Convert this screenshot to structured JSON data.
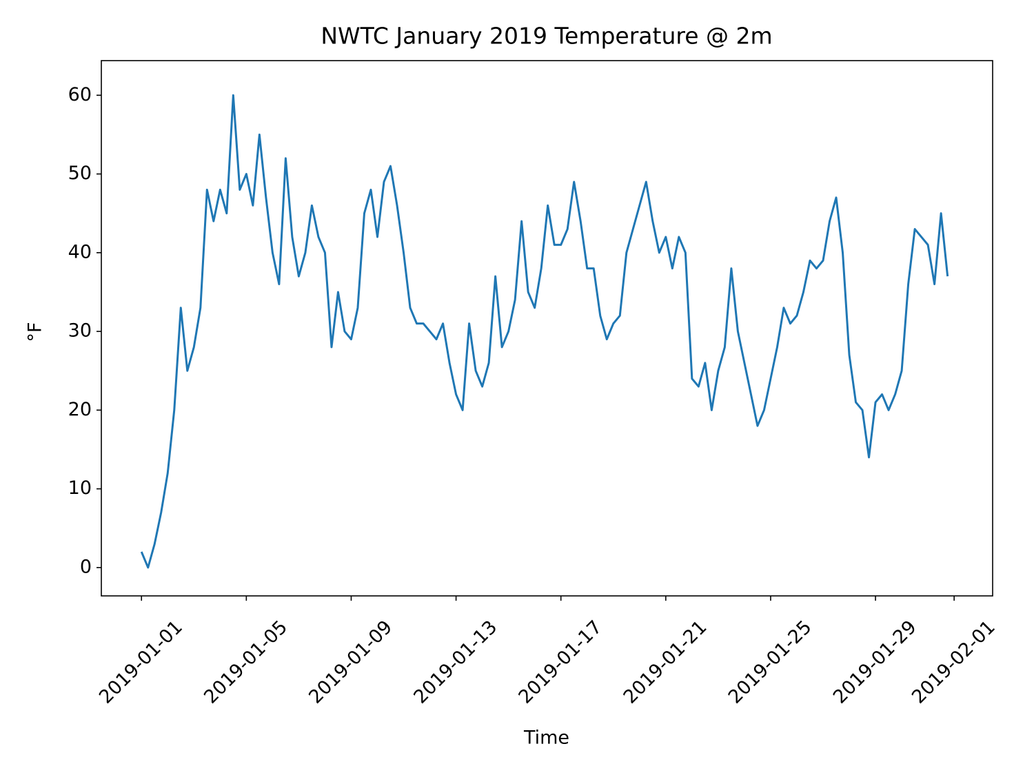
{
  "chart_data": {
    "type": "line",
    "title": "NWTC January 2019 Temperature @ 2m",
    "x_label": "Time",
    "y_label": "°F",
    "color": "#1f77b4",
    "xlim": [
      "2018-12-30T11:15",
      "2019-02-02T11:15"
    ],
    "xticks": [
      "2019-01-01",
      "2019-01-05",
      "2019-01-09",
      "2019-01-13",
      "2019-01-17",
      "2019-01-21",
      "2019-01-25",
      "2019-01-29",
      "2019-02-01"
    ],
    "ylim": [
      -3.6,
      64.4
    ],
    "yticks": [
      0,
      10,
      20,
      30,
      40,
      50,
      60
    ],
    "x": [
      "2019-01-01T00:00",
      "2019-01-01T06:00",
      "2019-01-01T12:00",
      "2019-01-01T18:00",
      "2019-01-02T00:00",
      "2019-01-02T06:00",
      "2019-01-02T12:00",
      "2019-01-02T18:00",
      "2019-01-03T00:00",
      "2019-01-03T06:00",
      "2019-01-03T12:00",
      "2019-01-03T18:00",
      "2019-01-04T00:00",
      "2019-01-04T06:00",
      "2019-01-04T12:00",
      "2019-01-04T18:00",
      "2019-01-05T00:00",
      "2019-01-05T06:00",
      "2019-01-05T12:00",
      "2019-01-05T18:00",
      "2019-01-06T00:00",
      "2019-01-06T06:00",
      "2019-01-06T12:00",
      "2019-01-06T18:00",
      "2019-01-07T00:00",
      "2019-01-07T06:00",
      "2019-01-07T12:00",
      "2019-01-07T18:00",
      "2019-01-08T00:00",
      "2019-01-08T06:00",
      "2019-01-08T12:00",
      "2019-01-08T18:00",
      "2019-01-09T00:00",
      "2019-01-09T06:00",
      "2019-01-09T12:00",
      "2019-01-09T18:00",
      "2019-01-10T00:00",
      "2019-01-10T06:00",
      "2019-01-10T12:00",
      "2019-01-10T18:00",
      "2019-01-11T00:00",
      "2019-01-11T06:00",
      "2019-01-11T12:00",
      "2019-01-11T18:00",
      "2019-01-12T00:00",
      "2019-01-12T06:00",
      "2019-01-12T12:00",
      "2019-01-12T18:00",
      "2019-01-13T00:00",
      "2019-01-13T06:00",
      "2019-01-13T12:00",
      "2019-01-13T18:00",
      "2019-01-14T00:00",
      "2019-01-14T06:00",
      "2019-01-14T12:00",
      "2019-01-14T18:00",
      "2019-01-15T00:00",
      "2019-01-15T06:00",
      "2019-01-15T12:00",
      "2019-01-15T18:00",
      "2019-01-16T00:00",
      "2019-01-16T06:00",
      "2019-01-16T12:00",
      "2019-01-16T18:00",
      "2019-01-17T00:00",
      "2019-01-17T06:00",
      "2019-01-17T12:00",
      "2019-01-17T18:00",
      "2019-01-18T00:00",
      "2019-01-18T06:00",
      "2019-01-18T12:00",
      "2019-01-18T18:00",
      "2019-01-19T00:00",
      "2019-01-19T06:00",
      "2019-01-19T12:00",
      "2019-01-19T18:00",
      "2019-01-20T00:00",
      "2019-01-20T06:00",
      "2019-01-20T12:00",
      "2019-01-20T18:00",
      "2019-01-21T00:00",
      "2019-01-21T06:00",
      "2019-01-21T12:00",
      "2019-01-21T18:00",
      "2019-01-22T00:00",
      "2019-01-22T06:00",
      "2019-01-22T12:00",
      "2019-01-22T18:00",
      "2019-01-23T00:00",
      "2019-01-23T06:00",
      "2019-01-23T12:00",
      "2019-01-23T18:00",
      "2019-01-24T00:00",
      "2019-01-24T06:00",
      "2019-01-24T12:00",
      "2019-01-24T18:00",
      "2019-01-25T00:00",
      "2019-01-25T06:00",
      "2019-01-25T12:00",
      "2019-01-25T18:00",
      "2019-01-26T00:00",
      "2019-01-26T06:00",
      "2019-01-26T12:00",
      "2019-01-26T18:00",
      "2019-01-27T00:00",
      "2019-01-27T06:00",
      "2019-01-27T12:00",
      "2019-01-27T18:00",
      "2019-01-28T00:00",
      "2019-01-28T06:00",
      "2019-01-28T12:00",
      "2019-01-28T18:00",
      "2019-01-29T00:00",
      "2019-01-29T06:00",
      "2019-01-29T12:00",
      "2019-01-29T18:00",
      "2019-01-30T00:00",
      "2019-01-30T06:00",
      "2019-01-30T12:00",
      "2019-01-30T18:00",
      "2019-01-31T00:00",
      "2019-01-31T06:00",
      "2019-01-31T12:00",
      "2019-01-31T18:00"
    ],
    "values": [
      2,
      0,
      3,
      7,
      12,
      20,
      33,
      25,
      28,
      33,
      48,
      44,
      48,
      45,
      60,
      48,
      50,
      46,
      55,
      47,
      40,
      36,
      52,
      42,
      37,
      40,
      46,
      42,
      40,
      28,
      35,
      30,
      29,
      33,
      45,
      48,
      42,
      49,
      51,
      46,
      40,
      33,
      31,
      31,
      30,
      29,
      31,
      26,
      22,
      20,
      31,
      25,
      23,
      26,
      37,
      28,
      30,
      34,
      44,
      35,
      33,
      38,
      46,
      41,
      41,
      43,
      49,
      44,
      38,
      38,
      32,
      29,
      31,
      32,
      40,
      43,
      46,
      49,
      44,
      40,
      42,
      38,
      42,
      40,
      24,
      23,
      26,
      20,
      25,
      28,
      38,
      30,
      26,
      22,
      18,
      20,
      24,
      28,
      33,
      31,
      32,
      35,
      39,
      38,
      39,
      44,
      47,
      40,
      27,
      21,
      20,
      14,
      21,
      22,
      20,
      22,
      25,
      36,
      43,
      42,
      41,
      36,
      45,
      37
    ]
  }
}
